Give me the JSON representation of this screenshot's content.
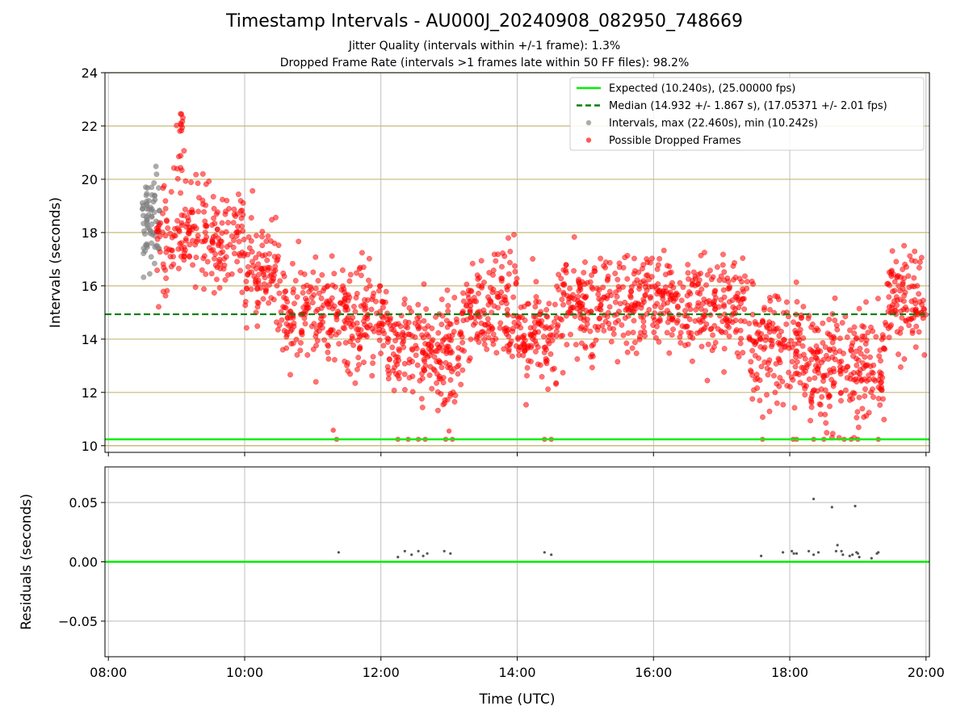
{
  "title": "Timestamp Intervals - AU000J_20240908_082950_748669",
  "subtitle_lines": [
    "Jitter Quality (intervals within +/-1 frame): 1.3%",
    "Dropped Frame Rate (intervals >1 frames late within 50 FF files): 98.2%"
  ],
  "colors": {
    "expected": "#00ee00",
    "median": "#007f00",
    "intervals": "#808080",
    "dropped": "#ff0000",
    "hgrid_top": "#c8b878",
    "grid": "#b0b0b0",
    "residual_points": "#555555"
  },
  "chart_data": [
    {
      "type": "scatter",
      "panel": "top",
      "ylabel": "Intervals (seconds)",
      "xlabel": "",
      "x_unit": "hours UTC",
      "xlim": [
        7.95,
        20.05
      ],
      "ylim": [
        9.75,
        24
      ],
      "yticks": [
        10,
        12,
        14,
        16,
        18,
        20,
        22,
        24
      ],
      "ytick_labels": [
        "10",
        "12",
        "14",
        "16",
        "18",
        "20",
        "22",
        "24"
      ],
      "grid": "horizontal gold lines at y ticks, vertical grey lines at x ticks",
      "legend_position": "top-right",
      "expected_interval": 10.24,
      "median_interval": 14.932,
      "legend": [
        {
          "label": "Expected (10.240s), (25.00000 fps)",
          "style": "solid-line",
          "color_key": "expected"
        },
        {
          "label": "Median (14.932 +/- 1.867 s), (17.05371 +/- 2.01 fps)",
          "style": "dashed-line",
          "color_key": "median"
        },
        {
          "label": "Intervals, max (22.460s), min (10.242s)",
          "style": "marker",
          "color_key": "intervals"
        },
        {
          "label": "Possible Dropped Frames",
          "style": "marker",
          "color_key": "dropped"
        }
      ],
      "series": [
        {
          "name": "Intervals, max (22.460s), min (10.242s)",
          "color_key": "intervals",
          "density_profile": [
            {
              "x_start": 8.5,
              "x_end": 8.75,
              "center": 18.6,
              "spread": 1.3,
              "count": 70
            }
          ]
        },
        {
          "name": "Possible Dropped Frames",
          "color_key": "dropped",
          "density_profile": [
            {
              "x_start": 8.7,
              "x_end": 9.0,
              "center": 17.8,
              "spread": 1.4,
              "count": 45
            },
            {
              "x_start": 9.0,
              "x_end": 9.12,
              "center": 21.3,
              "spread": 1.0,
              "count": 16
            },
            {
              "x_start": 9.0,
              "x_end": 10.0,
              "center": 17.8,
              "spread": 1.2,
              "count": 170
            },
            {
              "x_start": 10.0,
              "x_end": 10.5,
              "center": 16.7,
              "spread": 1.2,
              "count": 90
            },
            {
              "x_start": 10.5,
              "x_end": 11.5,
              "center": 15.0,
              "spread": 1.2,
              "count": 170
            },
            {
              "x_start": 11.5,
              "x_end": 12.1,
              "center": 14.7,
              "spread": 1.3,
              "count": 110
            },
            {
              "x_start": 12.1,
              "x_end": 13.2,
              "center": 13.6,
              "spread": 1.3,
              "count": 210
            },
            {
              "x_start": 13.2,
              "x_end": 14.0,
              "center": 15.1,
              "spread": 1.3,
              "count": 150
            },
            {
              "x_start": 14.0,
              "x_end": 14.6,
              "center": 14.2,
              "spread": 1.3,
              "count": 110
            },
            {
              "x_start": 14.6,
              "x_end": 16.2,
              "center": 15.4,
              "spread": 1.2,
              "count": 280
            },
            {
              "x_start": 16.2,
              "x_end": 17.4,
              "center": 15.3,
              "spread": 1.2,
              "count": 210
            },
            {
              "x_start": 17.4,
              "x_end": 18.2,
              "center": 13.7,
              "spread": 1.4,
              "count": 150
            },
            {
              "x_start": 18.2,
              "x_end": 19.4,
              "center": 12.9,
              "spread": 1.5,
              "count": 230
            },
            {
              "x_start": 19.4,
              "x_end": 20.0,
              "center": 15.3,
              "spread": 1.5,
              "count": 110
            }
          ],
          "points_near_expected": [
            [
              11.35,
              10.24
            ],
            [
              12.25,
              10.24
            ],
            [
              12.4,
              10.24
            ],
            [
              12.55,
              10.24
            ],
            [
              12.65,
              10.24
            ],
            [
              12.95,
              10.24
            ],
            [
              13.05,
              10.24
            ],
            [
              14.4,
              10.24
            ],
            [
              14.5,
              10.24
            ],
            [
              17.6,
              10.24
            ],
            [
              18.05,
              10.24
            ],
            [
              18.1,
              10.24
            ],
            [
              18.35,
              10.24
            ],
            [
              18.5,
              10.24
            ],
            [
              18.8,
              10.24
            ],
            [
              18.9,
              10.24
            ],
            [
              19.0,
              10.24
            ],
            [
              19.3,
              10.24
            ],
            [
              11.3,
              10.58
            ],
            [
              13.0,
              10.55
            ]
          ]
        }
      ]
    },
    {
      "type": "scatter",
      "panel": "bottom",
      "xlabel": "Time (UTC)",
      "ylabel": "Residuals (seconds)",
      "xlim": [
        7.95,
        20.05
      ],
      "ylim": [
        -0.08,
        0.08
      ],
      "yticks": [
        -0.05,
        0.0,
        0.05
      ],
      "ytick_labels": [
        "−0.05",
        "0.00",
        "0.05"
      ],
      "xticks": [
        8,
        10,
        12,
        14,
        16,
        18,
        20
      ],
      "xtick_labels": [
        "08:00",
        "10:00",
        "12:00",
        "14:00",
        "16:00",
        "18:00",
        "20:00"
      ],
      "grid": true,
      "zero_line_color_key": "expected",
      "series": [
        {
          "points": [
            [
              11.38,
              0.008
            ],
            [
              12.25,
              0.004
            ],
            [
              12.35,
              0.009
            ],
            [
              12.45,
              0.006
            ],
            [
              12.55,
              0.009
            ],
            [
              12.62,
              0.005
            ],
            [
              12.68,
              0.007
            ],
            [
              12.93,
              0.009
            ],
            [
              13.02,
              0.007
            ],
            [
              14.4,
              0.008
            ],
            [
              14.5,
              0.006
            ],
            [
              17.58,
              0.005
            ],
            [
              17.9,
              0.008
            ],
            [
              18.03,
              0.009
            ],
            [
              18.06,
              0.007
            ],
            [
              18.1,
              0.007
            ],
            [
              18.28,
              0.009
            ],
            [
              18.35,
              0.006
            ],
            [
              18.42,
              0.008
            ],
            [
              18.35,
              0.053
            ],
            [
              18.62,
              0.046
            ],
            [
              18.7,
              0.014
            ],
            [
              18.68,
              0.009
            ],
            [
              18.76,
              0.009
            ],
            [
              18.78,
              0.006
            ],
            [
              18.88,
              0.005
            ],
            [
              18.92,
              0.006
            ],
            [
              18.96,
              0.047
            ],
            [
              18.98,
              0.008
            ],
            [
              19.0,
              0.007
            ],
            [
              19.02,
              0.004
            ],
            [
              19.2,
              0.003
            ],
            [
              19.28,
              0.007
            ],
            [
              19.3,
              0.008
            ]
          ]
        }
      ]
    }
  ]
}
